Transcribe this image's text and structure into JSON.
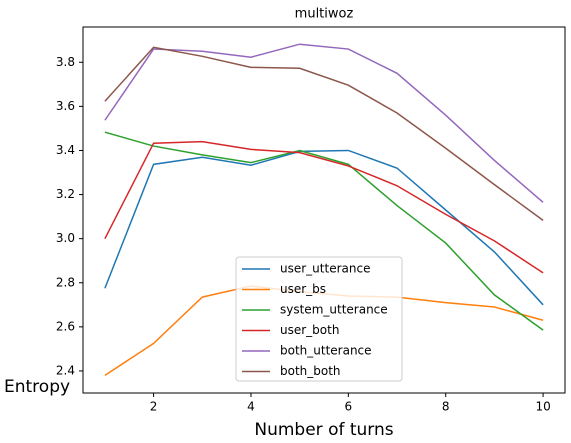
{
  "chart_data": {
    "type": "line",
    "title": "multiwoz",
    "x_label": "Number of turns",
    "y_label": "Entropy",
    "x": [
      1,
      2,
      3,
      4,
      5,
      6,
      7,
      8,
      9,
      10
    ],
    "series": [
      {
        "name": "user_utterance",
        "color": "#1f77b4",
        "values": [
          2.775,
          3.337,
          3.369,
          3.333,
          3.396,
          3.4,
          3.32,
          3.13,
          2.94,
          2.7
        ]
      },
      {
        "name": "user_bs",
        "color": "#ff7f0e",
        "values": [
          2.38,
          2.525,
          2.735,
          2.785,
          2.76,
          2.74,
          2.735,
          2.71,
          2.69,
          2.63
        ]
      },
      {
        "name": "system_utterance",
        "color": "#2ca02c",
        "values": [
          3.483,
          3.42,
          3.38,
          3.345,
          3.4,
          3.337,
          3.15,
          2.98,
          2.745,
          2.585
        ]
      },
      {
        "name": "user_both",
        "color": "#d62728",
        "values": [
          3.0,
          3.433,
          3.44,
          3.405,
          3.39,
          3.33,
          3.24,
          3.11,
          2.99,
          2.845
        ]
      },
      {
        "name": "both_utterance",
        "color": "#9467bd",
        "values": [
          3.537,
          3.86,
          3.85,
          3.823,
          3.882,
          3.86,
          3.75,
          3.56,
          3.355,
          3.165
        ]
      },
      {
        "name": "both_both",
        "color": "#8c564b",
        "values": [
          3.623,
          3.868,
          3.827,
          3.777,
          3.773,
          3.696,
          3.57,
          3.41,
          3.245,
          3.083
        ]
      }
    ],
    "xlim": [
      0.55,
      10.45
    ],
    "ylim": [
      2.3,
      3.96
    ],
    "xticks": [
      2,
      4,
      6,
      8,
      10
    ],
    "yticks": [
      2.4,
      2.6,
      2.8,
      {
        "value": 3.0,
        "label": "3.0"
      },
      3.2,
      3.4,
      3.6,
      3.8
    ],
    "grid": false,
    "legend": "lower center"
  }
}
